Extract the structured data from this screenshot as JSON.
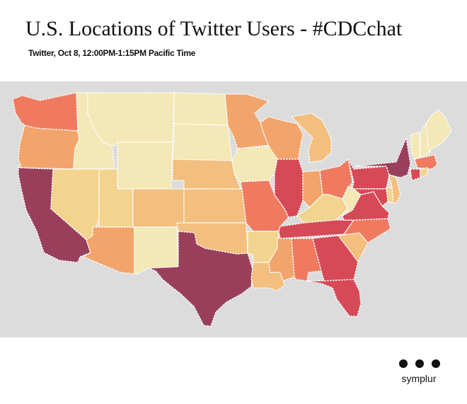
{
  "title": "U.S. Locations of Twitter Users - #CDCchat",
  "subtitle": "Twitter, Oct 8, 12:00PM-1:15PM Pacific Time",
  "brand": {
    "name": "symplur",
    "logo_icon": "three-dots-icon"
  },
  "colors": {
    "background": "#dcdcdc",
    "state_border": "#ffffff",
    "levels": [
      "#f3e8b6",
      "#f2d48f",
      "#f2bf7e",
      "#f2a46b",
      "#ef7a5f",
      "#d64956",
      "#993f5c"
    ]
  },
  "states": [
    {
      "id": "WA",
      "level": 4
    },
    {
      "id": "OR",
      "level": 3
    },
    {
      "id": "CA",
      "level": 6
    },
    {
      "id": "ID",
      "level": 0
    },
    {
      "id": "NV",
      "level": 1
    },
    {
      "id": "MT",
      "level": 0
    },
    {
      "id": "WY",
      "level": 0
    },
    {
      "id": "UT",
      "level": 1
    },
    {
      "id": "AZ",
      "level": 3
    },
    {
      "id": "CO",
      "level": 2
    },
    {
      "id": "NM",
      "level": 0
    },
    {
      "id": "ND",
      "level": 0
    },
    {
      "id": "SD",
      "level": 0
    },
    {
      "id": "NE",
      "level": 2
    },
    {
      "id": "KS",
      "level": 2
    },
    {
      "id": "OK",
      "level": 2
    },
    {
      "id": "TX",
      "level": 6
    },
    {
      "id": "MN",
      "level": 3
    },
    {
      "id": "IA",
      "level": 0
    },
    {
      "id": "MO",
      "level": 4
    },
    {
      "id": "AR",
      "level": 1
    },
    {
      "id": "LA",
      "level": 2
    },
    {
      "id": "WI",
      "level": 3
    },
    {
      "id": "IL",
      "level": 5
    },
    {
      "id": "MI",
      "level": 2
    },
    {
      "id": "IN",
      "level": 3
    },
    {
      "id": "OH",
      "level": 4
    },
    {
      "id": "KY",
      "level": 1
    },
    {
      "id": "TN",
      "level": 5
    },
    {
      "id": "MS",
      "level": 3
    },
    {
      "id": "AL",
      "level": 4
    },
    {
      "id": "GA",
      "level": 5
    },
    {
      "id": "FL",
      "level": 5
    },
    {
      "id": "SC",
      "level": 2
    },
    {
      "id": "NC",
      "level": 4
    },
    {
      "id": "VA",
      "level": 5
    },
    {
      "id": "WV",
      "level": 0
    },
    {
      "id": "PA",
      "level": 5
    },
    {
      "id": "NY",
      "level": 6
    },
    {
      "id": "VT",
      "level": 0
    },
    {
      "id": "NH",
      "level": 0
    },
    {
      "id": "ME",
      "level": 0
    },
    {
      "id": "MA",
      "level": 4
    },
    {
      "id": "CT",
      "level": 5
    },
    {
      "id": "RI",
      "level": 1
    },
    {
      "id": "NJ",
      "level": 2
    },
    {
      "id": "DE",
      "level": 1
    },
    {
      "id": "MD",
      "level": 5
    }
  ]
}
